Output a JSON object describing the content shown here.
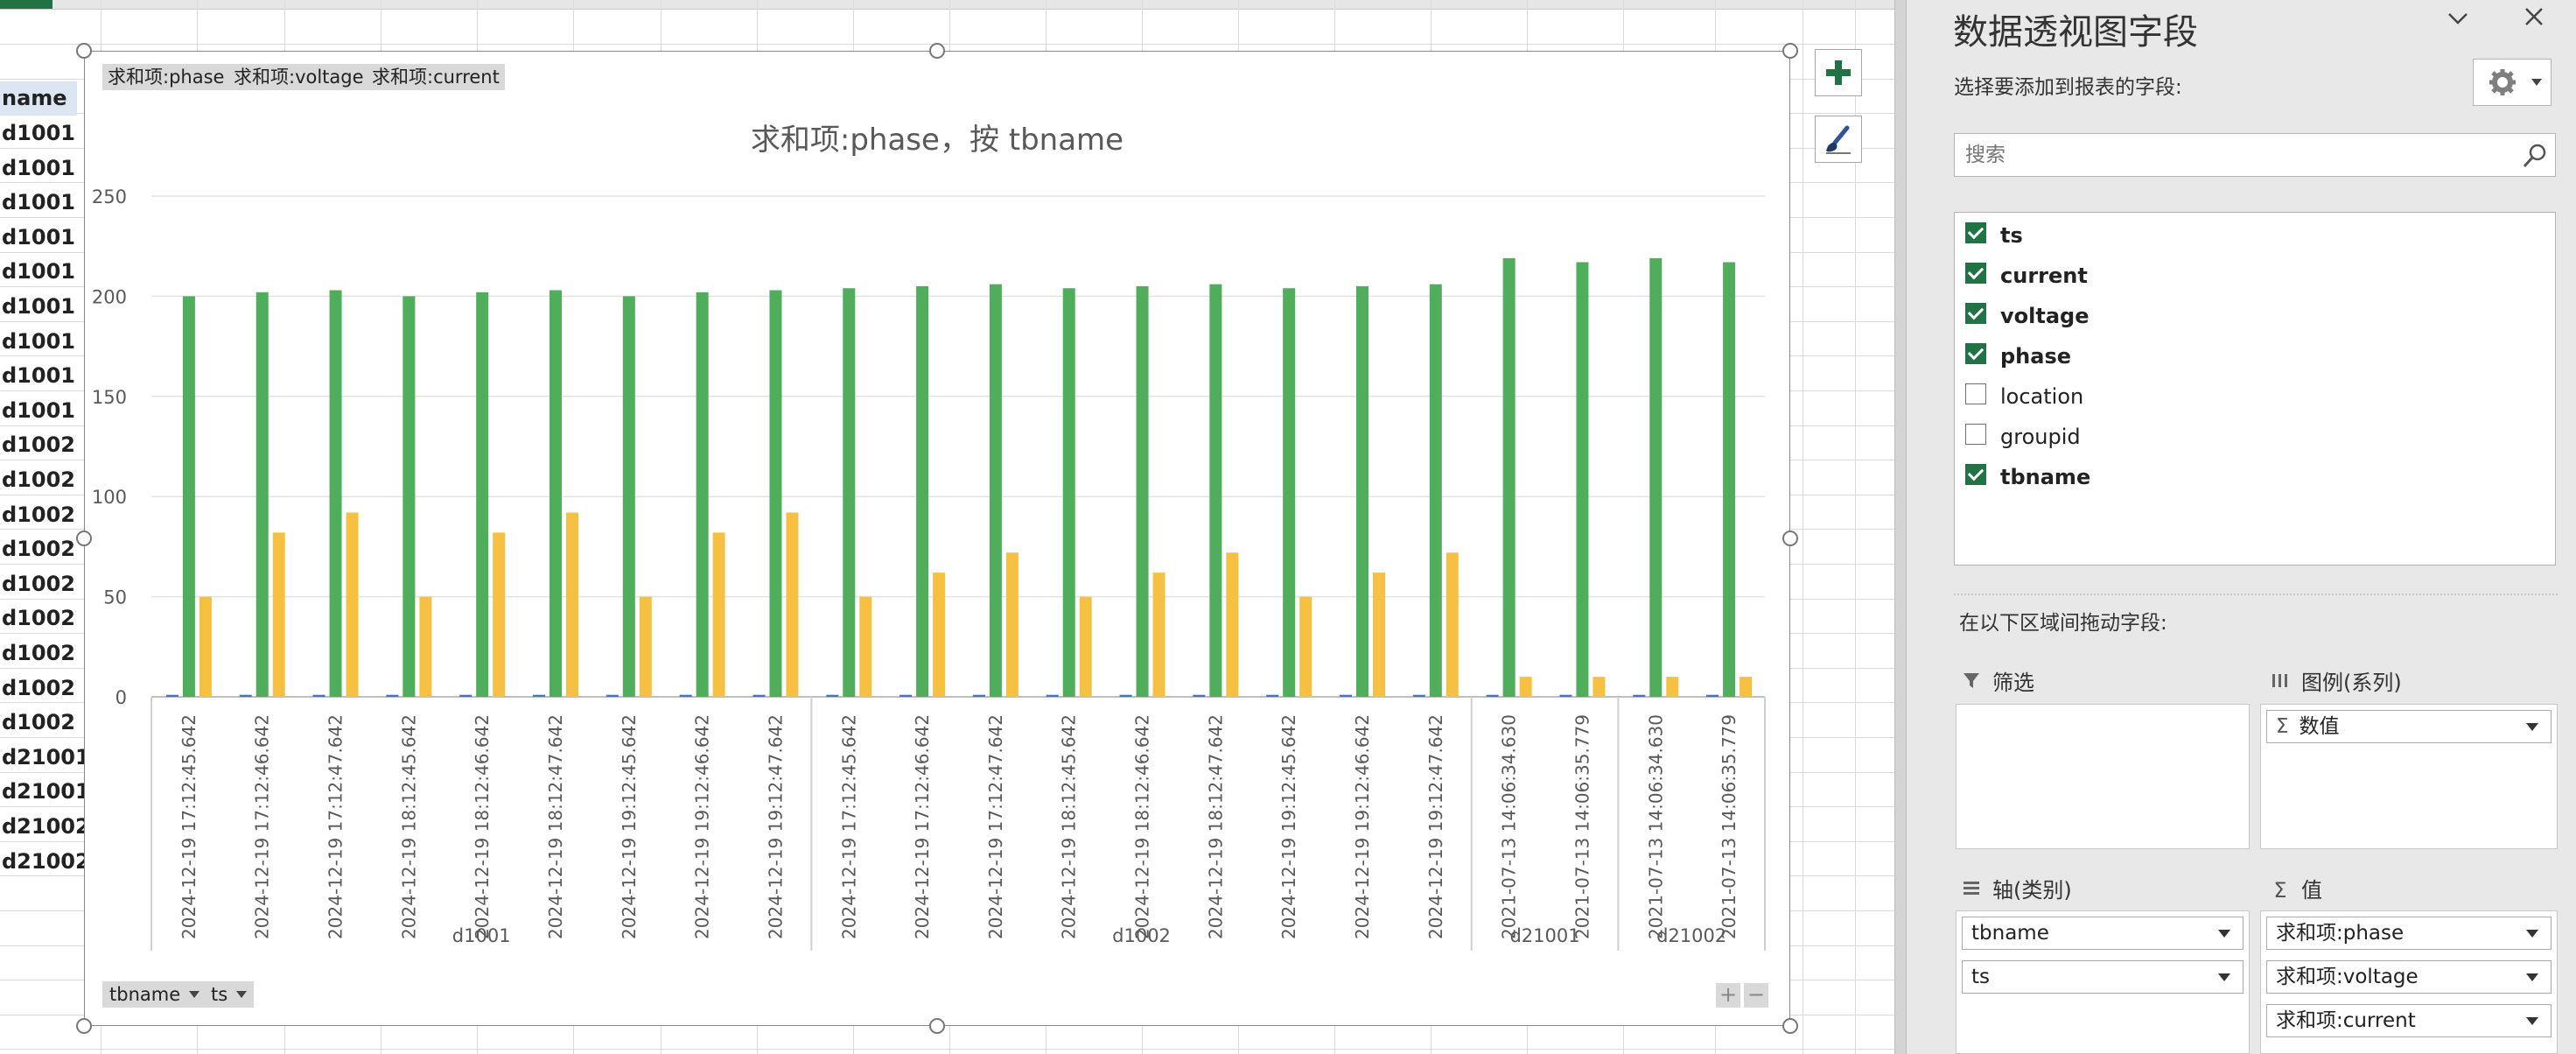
{
  "sheet": {
    "header_cell": "name",
    "row_values": [
      "d1001",
      "d1001",
      "d1001",
      "d1001",
      "d1001",
      "d1001",
      "d1001",
      "d1001",
      "d1001",
      "d1002",
      "d1002",
      "d1002",
      "d1002",
      "d1002",
      "d1002",
      "d1002",
      "d1002",
      "d1002",
      "d21001",
      "d21001",
      "d21002",
      "d21002"
    ]
  },
  "chart": {
    "value_buttons": [
      "求和项:phase",
      "求和项:voltage",
      "求和项:current"
    ],
    "axis_buttons": [
      "tbname",
      "ts"
    ],
    "plus_label": "+",
    "minus_label": "−",
    "side_add_icon": "plus-icon",
    "side_style_icon": "brush-icon"
  },
  "chart_data": {
    "type": "bar",
    "title": "求和项:phase，按 tbname",
    "ylim": [
      0,
      250
    ],
    "yticks": [
      0,
      50,
      100,
      150,
      200,
      250
    ],
    "grid": true,
    "groups": [
      {
        "name": "d1001",
        "count": 9
      },
      {
        "name": "d1002",
        "count": 9
      },
      {
        "name": "d21001",
        "count": 2
      },
      {
        "name": "d21002",
        "count": 2
      }
    ],
    "categories": [
      "2024-12-19 17:12:45.642",
      "2024-12-19 17:12:46.642",
      "2024-12-19 17:12:47.642",
      "2024-12-19 18:12:45.642",
      "2024-12-19 18:12:46.642",
      "2024-12-19 18:12:47.642",
      "2024-12-19 19:12:45.642",
      "2024-12-19 19:12:46.642",
      "2024-12-19 19:12:47.642",
      "2024-12-19 17:12:45.642",
      "2024-12-19 17:12:46.642",
      "2024-12-19 17:12:47.642",
      "2024-12-19 18:12:45.642",
      "2024-12-19 18:12:46.642",
      "2024-12-19 18:12:47.642",
      "2024-12-19 19:12:45.642",
      "2024-12-19 19:12:46.642",
      "2024-12-19 19:12:47.642",
      "2021-07-13 14:06:34.630",
      "2021-07-13 14:06:35.779",
      "2021-07-13 14:06:34.630",
      "2021-07-13 14:06:35.779"
    ],
    "series": [
      {
        "color": "#4472c4",
        "values": [
          1,
          1,
          1,
          1,
          1,
          1,
          1,
          1,
          1,
          1,
          1,
          1,
          1,
          1,
          1,
          1,
          1,
          1,
          1,
          1,
          1,
          1
        ]
      },
      {
        "color": "#4fad5b",
        "values": [
          200,
          202,
          203,
          200,
          202,
          203,
          200,
          202,
          203,
          204,
          205,
          206,
          204,
          205,
          206,
          204,
          205,
          206,
          219,
          217,
          219,
          217
        ]
      },
      {
        "color": "#f6c142",
        "values": [
          50,
          82,
          92,
          50,
          82,
          92,
          50,
          82,
          92,
          50,
          62,
          72,
          50,
          62,
          72,
          50,
          62,
          72,
          10,
          10,
          10,
          10
        ]
      }
    ]
  },
  "pane": {
    "title": "数据透视图字段",
    "choose_label": "选择要添加到报表的字段:",
    "search_placeholder": "搜索",
    "fields": [
      {
        "name": "ts",
        "checked": true
      },
      {
        "name": "current",
        "checked": true
      },
      {
        "name": "voltage",
        "checked": true
      },
      {
        "name": "phase",
        "checked": true
      },
      {
        "name": "location",
        "checked": false
      },
      {
        "name": "groupid",
        "checked": false
      },
      {
        "name": "tbname",
        "checked": true
      }
    ],
    "drag_label": "在以下区域间拖动字段:",
    "filter_label": "筛选",
    "legend_label": "图例(系列)",
    "legend_items": [
      "数值"
    ],
    "axis_label": "轴(类别)",
    "axis_items": [
      "tbname",
      "ts"
    ],
    "values_label": "值",
    "value_items": [
      "求和项:phase",
      "求和项:voltage",
      "求和项:current"
    ],
    "sigma": "Σ"
  }
}
